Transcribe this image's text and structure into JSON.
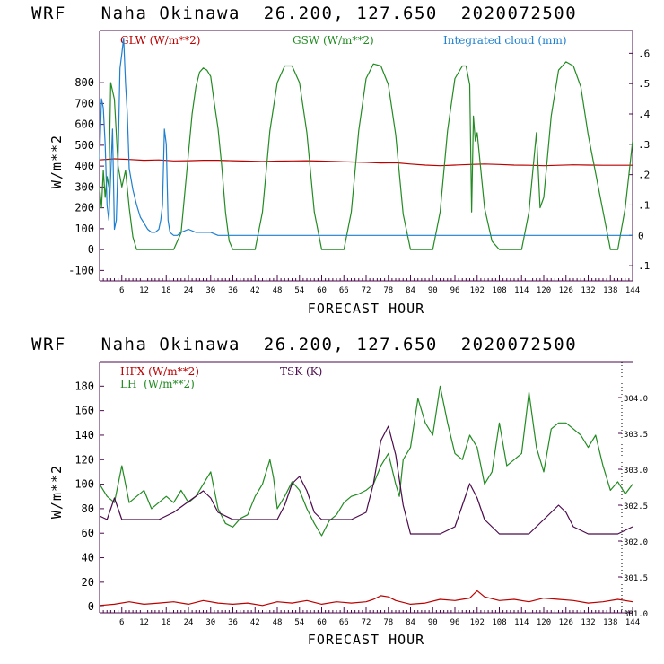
{
  "colors": {
    "red": "#bb0000",
    "green": "#228b22",
    "blue": "#1e7fd0",
    "purple": "#4b0a4b",
    "axis": "#4b0a4b"
  },
  "chart_data": [
    {
      "type": "line",
      "title": "WRF   Naha Okinawa  26.200, 127.650  2020072500",
      "xlabel": "FORECAST HOUR",
      "ylabel": "W/m**2",
      "xlim": [
        0,
        144
      ],
      "ylim": [
        -150,
        1050
      ],
      "y2lim": [
        -0.15,
        0.675
      ],
      "x_ticks": [
        6,
        12,
        18,
        24,
        30,
        36,
        42,
        48,
        54,
        60,
        66,
        72,
        78,
        84,
        90,
        96,
        102,
        108,
        114,
        120,
        126,
        132,
        138,
        144
      ],
      "x_tick_labels": [
        "6",
        "12",
        "18",
        "24",
        "30",
        "36",
        "42",
        "48",
        "54",
        "60",
        "66",
        "72",
        "78",
        "84",
        "90",
        "96",
        "102",
        "108",
        "114",
        "120",
        "126",
        "132",
        "138",
        "144"
      ],
      "y_ticks": [
        -100,
        0,
        100,
        200,
        300,
        400,
        500,
        600,
        700,
        800
      ],
      "y_tick_labels": [
        "-100",
        "0",
        "100",
        "200",
        "300",
        "400",
        "500",
        "600",
        "700",
        "800"
      ],
      "y2_ticks": [
        -0.1,
        0,
        0.1,
        0.2,
        0.3,
        0.4,
        0.5,
        0.6
      ],
      "y2_tick_labels": [
        ".1",
        "0",
        ".1",
        ".2",
        ".3",
        ".4",
        ".5",
        ".6"
      ],
      "series": [
        {
          "name": "GLW (W/m**2)",
          "axis": "left",
          "color": "#bb0000",
          "x": [
            0,
            4,
            8,
            12,
            16,
            20,
            24,
            28,
            32,
            36,
            40,
            44,
            48,
            52,
            56,
            60,
            64,
            68,
            72,
            76,
            80,
            84,
            88,
            92,
            96,
            100,
            104,
            108,
            112,
            116,
            120,
            124,
            128,
            132,
            136,
            140,
            144
          ],
          "y": [
            430,
            435,
            432,
            428,
            430,
            425,
            426,
            428,
            428,
            426,
            424,
            422,
            424,
            425,
            426,
            424,
            422,
            420,
            418,
            415,
            416,
            410,
            405,
            402,
            405,
            408,
            410,
            408,
            405,
            404,
            402,
            404,
            406,
            405,
            404,
            404,
            404
          ]
        },
        {
          "name": "GSW (W/m**2)",
          "axis": "left",
          "color": "#228b22",
          "x": [
            0,
            0.5,
            1,
            1.5,
            2,
            2.5,
            3,
            4,
            5,
            6,
            7,
            8,
            9,
            10,
            11,
            12,
            14,
            16,
            18,
            20,
            22,
            24,
            25,
            26,
            27,
            28,
            29,
            30,
            31,
            32,
            33,
            34,
            35,
            36,
            42,
            44,
            46,
            48,
            50,
            52,
            54,
            56,
            58,
            60,
            66,
            68,
            70,
            72,
            74,
            76,
            78,
            80,
            82,
            84,
            90,
            92,
            94,
            96,
            98,
            99,
            100,
            100.5,
            101,
            101.5,
            102,
            104,
            106,
            108,
            114,
            116,
            118,
            119,
            120,
            122,
            124,
            126,
            128,
            130,
            132,
            138,
            140,
            142,
            143,
            144
          ],
          "y": [
            300,
            200,
            380,
            250,
            350,
            300,
            800,
            720,
            400,
            300,
            380,
            200,
            60,
            0,
            0,
            0,
            0,
            0,
            0,
            0,
            80,
            460,
            650,
            780,
            850,
            870,
            860,
            830,
            700,
            580,
            400,
            180,
            40,
            0,
            0,
            180,
            570,
            800,
            880,
            880,
            800,
            560,
            180,
            0,
            0,
            180,
            570,
            820,
            890,
            880,
            790,
            550,
            170,
            0,
            0,
            180,
            570,
            820,
            880,
            880,
            790,
            180,
            640,
            520,
            560,
            200,
            40,
            0,
            0,
            180,
            560,
            200,
            250,
            640,
            860,
            900,
            880,
            780,
            550,
            0,
            0,
            200,
            360,
            520
          ]
        },
        {
          "name": "Integrated cloud (mm)",
          "axis": "right",
          "color": "#1e7fd0",
          "x": [
            0,
            0.5,
            1,
            1.5,
            2,
            2.5,
            3,
            3.5,
            4,
            4.5,
            5,
            5.5,
            6,
            6.5,
            7,
            7.5,
            8,
            9,
            10,
            11,
            12,
            13,
            14,
            15,
            16,
            16.5,
            17,
            17.5,
            18,
            18.5,
            19,
            20,
            21,
            22,
            24,
            26,
            28,
            30,
            32,
            34,
            36,
            144
          ],
          "y": [
            0.25,
            0.45,
            0.42,
            0.3,
            0.1,
            0.05,
            0.2,
            0.35,
            0.02,
            0.05,
            0.25,
            0.55,
            0.6,
            0.65,
            0.5,
            0.4,
            0.22,
            0.15,
            0.1,
            0.06,
            0.04,
            0.02,
            0.01,
            0.01,
            0.02,
            0.05,
            0.1,
            0.35,
            0.3,
            0.05,
            0.01,
            0.0,
            0.0,
            0.01,
            0.02,
            0.01,
            0.01,
            0.01,
            0.0,
            0.0,
            0.0,
            0.0
          ]
        }
      ]
    },
    {
      "type": "line",
      "title": "WRF   Naha Okinawa  26.200, 127.650  2020072500",
      "xlabel": "FORECAST HOUR",
      "ylabel": "W/m**2",
      "xlim": [
        0,
        144
      ],
      "ylim": [
        -5,
        200
      ],
      "y2lim": [
        301.0,
        304.5
      ],
      "x_ticks": [
        6,
        12,
        18,
        24,
        30,
        36,
        42,
        48,
        54,
        60,
        66,
        72,
        78,
        84,
        90,
        96,
        102,
        108,
        114,
        120,
        126,
        132,
        138,
        144
      ],
      "x_tick_labels": [
        "6",
        "12",
        "18",
        "24",
        "30",
        "36",
        "42",
        "48",
        "54",
        "60",
        "66",
        "72",
        "78",
        "84",
        "90",
        "96",
        "102",
        "108",
        "114",
        "120",
        "126",
        "132",
        "138",
        "144"
      ],
      "y_ticks": [
        0,
        20,
        40,
        60,
        80,
        100,
        120,
        140,
        160,
        180
      ],
      "y_tick_labels": [
        "0",
        "20",
        "40",
        "60",
        "80",
        "100",
        "120",
        "140",
        "160",
        "180"
      ],
      "y2_ticks": [
        301.0,
        301.5,
        302.0,
        302.5,
        303.0,
        303.5,
        304.0
      ],
      "y2_tick_labels": [
        "301.0",
        "301.5",
        "302.0",
        "302.5",
        "303.0",
        "303.5",
        "304.0"
      ],
      "series": [
        {
          "name": "HFX (W/m**2)",
          "axis": "left",
          "color": "#bb0000",
          "x": [
            0,
            4,
            8,
            12,
            16,
            20,
            24,
            28,
            32,
            36,
            40,
            44,
            48,
            52,
            56,
            60,
            64,
            68,
            72,
            74,
            76,
            78,
            80,
            84,
            88,
            92,
            96,
            100,
            101,
            102,
            104,
            108,
            112,
            116,
            120,
            124,
            128,
            132,
            136,
            140,
            144
          ],
          "y": [
            1,
            2,
            4,
            2,
            3,
            4,
            2,
            5,
            3,
            2,
            3,
            1,
            4,
            3,
            5,
            2,
            4,
            3,
            4,
            6,
            9,
            8,
            5,
            2,
            3,
            6,
            5,
            7,
            10,
            13,
            8,
            5,
            6,
            4,
            7,
            6,
            5,
            3,
            4,
            6,
            4
          ]
        },
        {
          "name": "LH  (W/m**2)",
          "axis": "left",
          "color": "#228b22",
          "x": [
            0,
            2,
            4,
            6,
            8,
            10,
            12,
            14,
            16,
            18,
            20,
            22,
            24,
            26,
            28,
            30,
            32,
            34,
            36,
            38,
            40,
            42,
            44,
            46,
            47,
            48,
            50,
            52,
            54,
            56,
            58,
            60,
            62,
            64,
            66,
            68,
            70,
            72,
            74,
            76,
            78,
            80,
            81,
            82,
            84,
            86,
            88,
            90,
            92,
            94,
            96,
            98,
            100,
            102,
            104,
            106,
            108,
            110,
            112,
            114,
            116,
            118,
            120,
            122,
            124,
            126,
            128,
            130,
            132,
            134,
            136,
            138,
            140,
            142,
            144
          ],
          "y": [
            100,
            90,
            85,
            115,
            85,
            90,
            95,
            80,
            85,
            90,
            85,
            95,
            85,
            90,
            100,
            110,
            80,
            68,
            65,
            72,
            75,
            90,
            100,
            120,
            105,
            80,
            90,
            102,
            95,
            80,
            68,
            58,
            70,
            75,
            85,
            90,
            92,
            95,
            100,
            115,
            125,
            100,
            90,
            120,
            130,
            170,
            150,
            140,
            180,
            150,
            125,
            120,
            140,
            130,
            100,
            110,
            150,
            115,
            120,
            125,
            175,
            130,
            110,
            145,
            150,
            150,
            145,
            140,
            130,
            140,
            115,
            95,
            102,
            92,
            100
          ]
        },
        {
          "name": "TSK (K)",
          "axis": "right",
          "color": "#4b0a4b",
          "x": [
            0,
            2,
            4,
            6,
            8,
            12,
            16,
            20,
            24,
            28,
            30,
            32,
            36,
            40,
            44,
            48,
            50,
            52,
            54,
            56,
            58,
            60,
            64,
            68,
            72,
            74,
            76,
            78,
            80,
            82,
            84,
            88,
            92,
            96,
            98,
            100,
            102,
            104,
            108,
            112,
            116,
            120,
            124,
            126,
            128,
            132,
            136,
            140,
            144
          ],
          "y": [
            302.35,
            302.3,
            302.6,
            302.3,
            302.3,
            302.3,
            302.3,
            302.4,
            302.55,
            302.7,
            302.6,
            302.4,
            302.3,
            302.3,
            302.3,
            302.3,
            302.5,
            302.8,
            302.9,
            302.7,
            302.4,
            302.3,
            302.3,
            302.3,
            302.4,
            302.8,
            303.4,
            303.6,
            303.2,
            302.5,
            302.1,
            302.1,
            302.1,
            302.2,
            302.5,
            302.8,
            302.6,
            302.3,
            302.1,
            302.1,
            302.1,
            302.3,
            302.5,
            302.4,
            302.2,
            302.1,
            302.1,
            302.1,
            302.2
          ]
        }
      ]
    }
  ]
}
